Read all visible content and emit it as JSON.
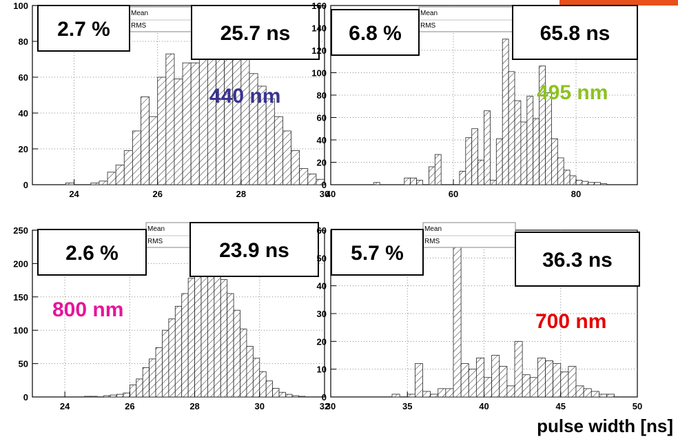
{
  "chart_data": [
    {
      "type": "bar",
      "wavelength": "440 nm",
      "wavelength_color": "#3a3392",
      "resolution": "2.7 %",
      "mean_width": "25.7 ns",
      "legend": [
        "Mean",
        "RMS"
      ],
      "xlim": [
        23,
        30
      ],
      "ylim": [
        0,
        100
      ],
      "xticks": [
        24,
        26,
        28,
        30
      ],
      "yticks": [
        0,
        20,
        40,
        60,
        80,
        100
      ],
      "bin_width": 0.2,
      "bins_start": 23.8,
      "values": [
        1,
        0,
        0,
        1,
        2,
        7,
        11,
        19,
        30,
        49,
        38,
        60,
        73,
        59,
        68,
        68,
        74,
        77,
        74,
        82,
        75,
        70,
        62,
        55,
        48,
        38,
        30,
        19,
        9,
        6,
        3,
        2,
        0,
        0,
        0,
        0,
        0,
        0,
        0,
        0,
        0,
        0,
        0,
        0,
        0,
        0,
        0,
        0,
        0,
        0,
        0,
        0,
        0,
        0,
        0,
        0,
        0,
        0,
        0,
        0,
        0,
        0,
        0,
        0,
        0,
        0,
        0,
        0,
        0,
        0,
        0,
        0,
        0,
        0,
        0,
        0,
        0,
        0,
        0,
        0,
        0,
        0,
        0,
        0,
        0,
        0,
        0,
        0,
        0,
        0,
        0,
        0,
        0,
        0,
        0,
        0,
        0,
        0,
        0,
        0,
        0,
        0
      ]
    },
    {
      "type": "bar",
      "wavelength": "495 nm",
      "wavelength_color": "#8cc21f",
      "resolution": "6.8 %",
      "mean_width": "65.8 ns",
      "legend": [
        "Mean",
        "RMS"
      ],
      "xlim": [
        40,
        90
      ],
      "ylim": [
        0,
        160
      ],
      "xticks": [
        40,
        60,
        80
      ],
      "yticks": [
        0,
        20,
        40,
        60,
        80,
        100,
        120,
        140,
        160
      ],
      "bin_width": 1,
      "bins_start": 47,
      "values": [
        2,
        0,
        0,
        0,
        0,
        6,
        6,
        4,
        0,
        16,
        27,
        0,
        0,
        0,
        12,
        42,
        50,
        22,
        66,
        4,
        41,
        130,
        101,
        75,
        56,
        79,
        59,
        106,
        82,
        41,
        24,
        13,
        8,
        4,
        3,
        2,
        2,
        1
      ]
    },
    {
      "type": "bar",
      "wavelength": "800 nm",
      "wavelength_color": "#e6149b",
      "resolution": "2.6 %",
      "mean_width": "23.9 ns",
      "legend": [
        "Mean",
        "RMS"
      ],
      "xlim": [
        23,
        32
      ],
      "ylim": [
        0,
        250
      ],
      "xticks": [
        24,
        26,
        28,
        30,
        32
      ],
      "yticks": [
        0,
        50,
        100,
        150,
        200,
        250
      ],
      "bin_width": 0.2,
      "bins_start": 24.6,
      "values": [
        1,
        1,
        0,
        2,
        3,
        4,
        6,
        18,
        27,
        44,
        57,
        74,
        100,
        117,
        136,
        155,
        178,
        200,
        216,
        204,
        190,
        176,
        155,
        130,
        102,
        76,
        58,
        38,
        24,
        13,
        7,
        4,
        2,
        1
      ]
    },
    {
      "type": "bar",
      "wavelength": "700 nm",
      "wavelength_color": "#e60000",
      "resolution": "5.7 %",
      "mean_width": "36.3 ns",
      "legend": [
        "Mean",
        "RMS"
      ],
      "xlabel": "pulse width [ns]",
      "xlim": [
        30,
        50
      ],
      "ylim": [
        0,
        60
      ],
      "xticks": [
        30,
        35,
        40,
        45,
        50
      ],
      "yticks": [
        0,
        10,
        20,
        30,
        40,
        50,
        60
      ],
      "bin_width": 0.5,
      "bins_start": 34,
      "values": [
        1,
        0,
        1,
        12,
        2,
        1,
        3,
        3,
        54,
        12,
        10,
        14,
        7,
        15,
        11,
        4,
        20,
        8,
        7,
        14,
        13,
        12,
        9,
        11,
        4,
        3,
        2,
        1,
        1
      ]
    }
  ]
}
